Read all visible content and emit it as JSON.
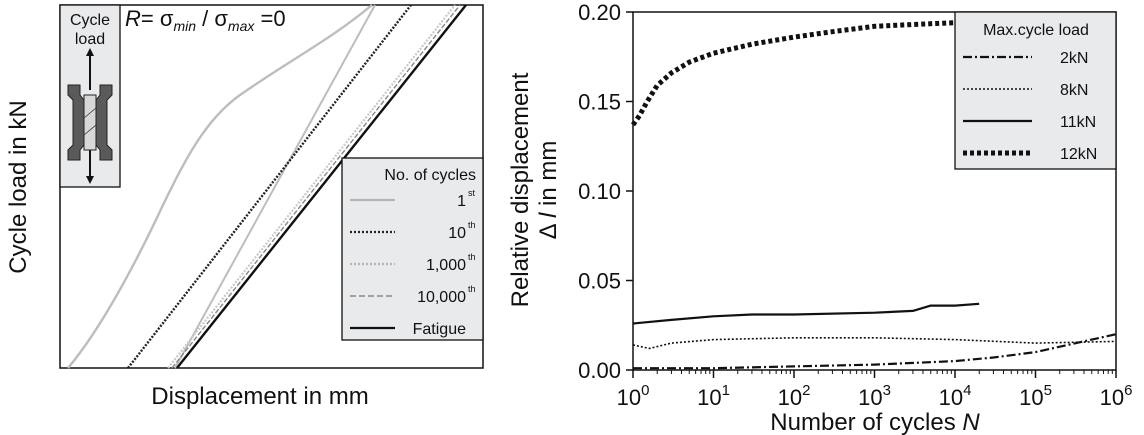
{
  "chart_data": [
    {
      "type": "line",
      "ylabel": "Cycle load in kN",
      "xlabel": "Displacement in mm",
      "inset": {
        "title_line1": "Cycle",
        "title_line2": "load"
      },
      "ratio_text": {
        "r": "R",
        "eq": "= σ",
        "min": "min",
        "slash": " / σ",
        "max": "max",
        "zero": " =0"
      },
      "legend": {
        "title": "No. of cycles",
        "items": [
          {
            "label": "1",
            "sup": "st",
            "color": "#b5b5b5",
            "style": "solid"
          },
          {
            "label": "10",
            "sup": "th",
            "color": "#222222",
            "style": "dotted"
          },
          {
            "label": "1,000",
            "sup": "th",
            "color": "#b5b5b5",
            "style": "dotted"
          },
          {
            "label": "10,000",
            "sup": "th",
            "color": "#777777",
            "style": "dashed"
          },
          {
            "label": "Fatigue",
            "sup": "",
            "color": "#111111",
            "style": "solid"
          }
        ]
      }
    },
    {
      "type": "line",
      "xlabel_main": "Number of cycles ",
      "xlabel_var": "N",
      "ylabel_line1": "Relative displacement",
      "ylabel_delta": "Δ ",
      "ylabel_var": "l",
      "ylabel_unit": " in mm",
      "x_scale": "log",
      "xlim": [
        1,
        1000000
      ],
      "ylim": [
        0,
        0.2
      ],
      "x_ticks": [
        {
          "value": 1,
          "base": "10",
          "exp": "0"
        },
        {
          "value": 10,
          "base": "10",
          "exp": "1"
        },
        {
          "value": 100,
          "base": "10",
          "exp": "2"
        },
        {
          "value": 1000,
          "base": "10",
          "exp": "3"
        },
        {
          "value": 10000,
          "base": "10",
          "exp": "4"
        },
        {
          "value": 100000,
          "base": "10",
          "exp": "5"
        },
        {
          "value": 1000000,
          "base": "10",
          "exp": "6"
        }
      ],
      "y_ticks": [
        {
          "value": 0,
          "label": "0.00"
        },
        {
          "value": 0.05,
          "label": "0.05"
        },
        {
          "value": 0.1,
          "label": "0.10"
        },
        {
          "value": 0.15,
          "label": "0.15"
        },
        {
          "value": 0.2,
          "label": "0.20"
        }
      ],
      "legend": {
        "title": "Max.cycle load",
        "placement": "top-right"
      },
      "series": [
        {
          "name": "2kN",
          "style": "dashdot",
          "color": "#111111",
          "x": [
            1,
            10,
            100,
            1000,
            10000,
            30000,
            100000,
            1000000
          ],
          "y": [
            0.001,
            0.001,
            0.002,
            0.003,
            0.005,
            0.007,
            0.01,
            0.02
          ]
        },
        {
          "name": "8kN",
          "style": "dotted",
          "color": "#111111",
          "x": [
            1,
            1.6,
            3,
            10,
            100,
            1000,
            10000,
            100000,
            1000000
          ],
          "y": [
            0.014,
            0.012,
            0.015,
            0.017,
            0.018,
            0.018,
            0.017,
            0.015,
            0.016
          ]
        },
        {
          "name": "11kN",
          "style": "solid",
          "color": "#111111",
          "x": [
            1,
            3,
            10,
            30,
            100,
            1000,
            3000,
            5000,
            10000,
            20000
          ],
          "y": [
            0.026,
            0.028,
            0.03,
            0.031,
            0.031,
            0.032,
            0.033,
            0.036,
            0.036,
            0.037
          ]
        },
        {
          "name": "12kN",
          "style": "thick-dotted",
          "color": "#111111",
          "x": [
            1,
            1.2,
            1.5,
            2,
            3,
            5,
            10,
            30,
            100,
            300,
            1000,
            3000,
            10000
          ],
          "y": [
            0.137,
            0.142,
            0.15,
            0.159,
            0.166,
            0.172,
            0.177,
            0.182,
            0.186,
            0.189,
            0.192,
            0.193,
            0.194
          ]
        }
      ]
    }
  ]
}
